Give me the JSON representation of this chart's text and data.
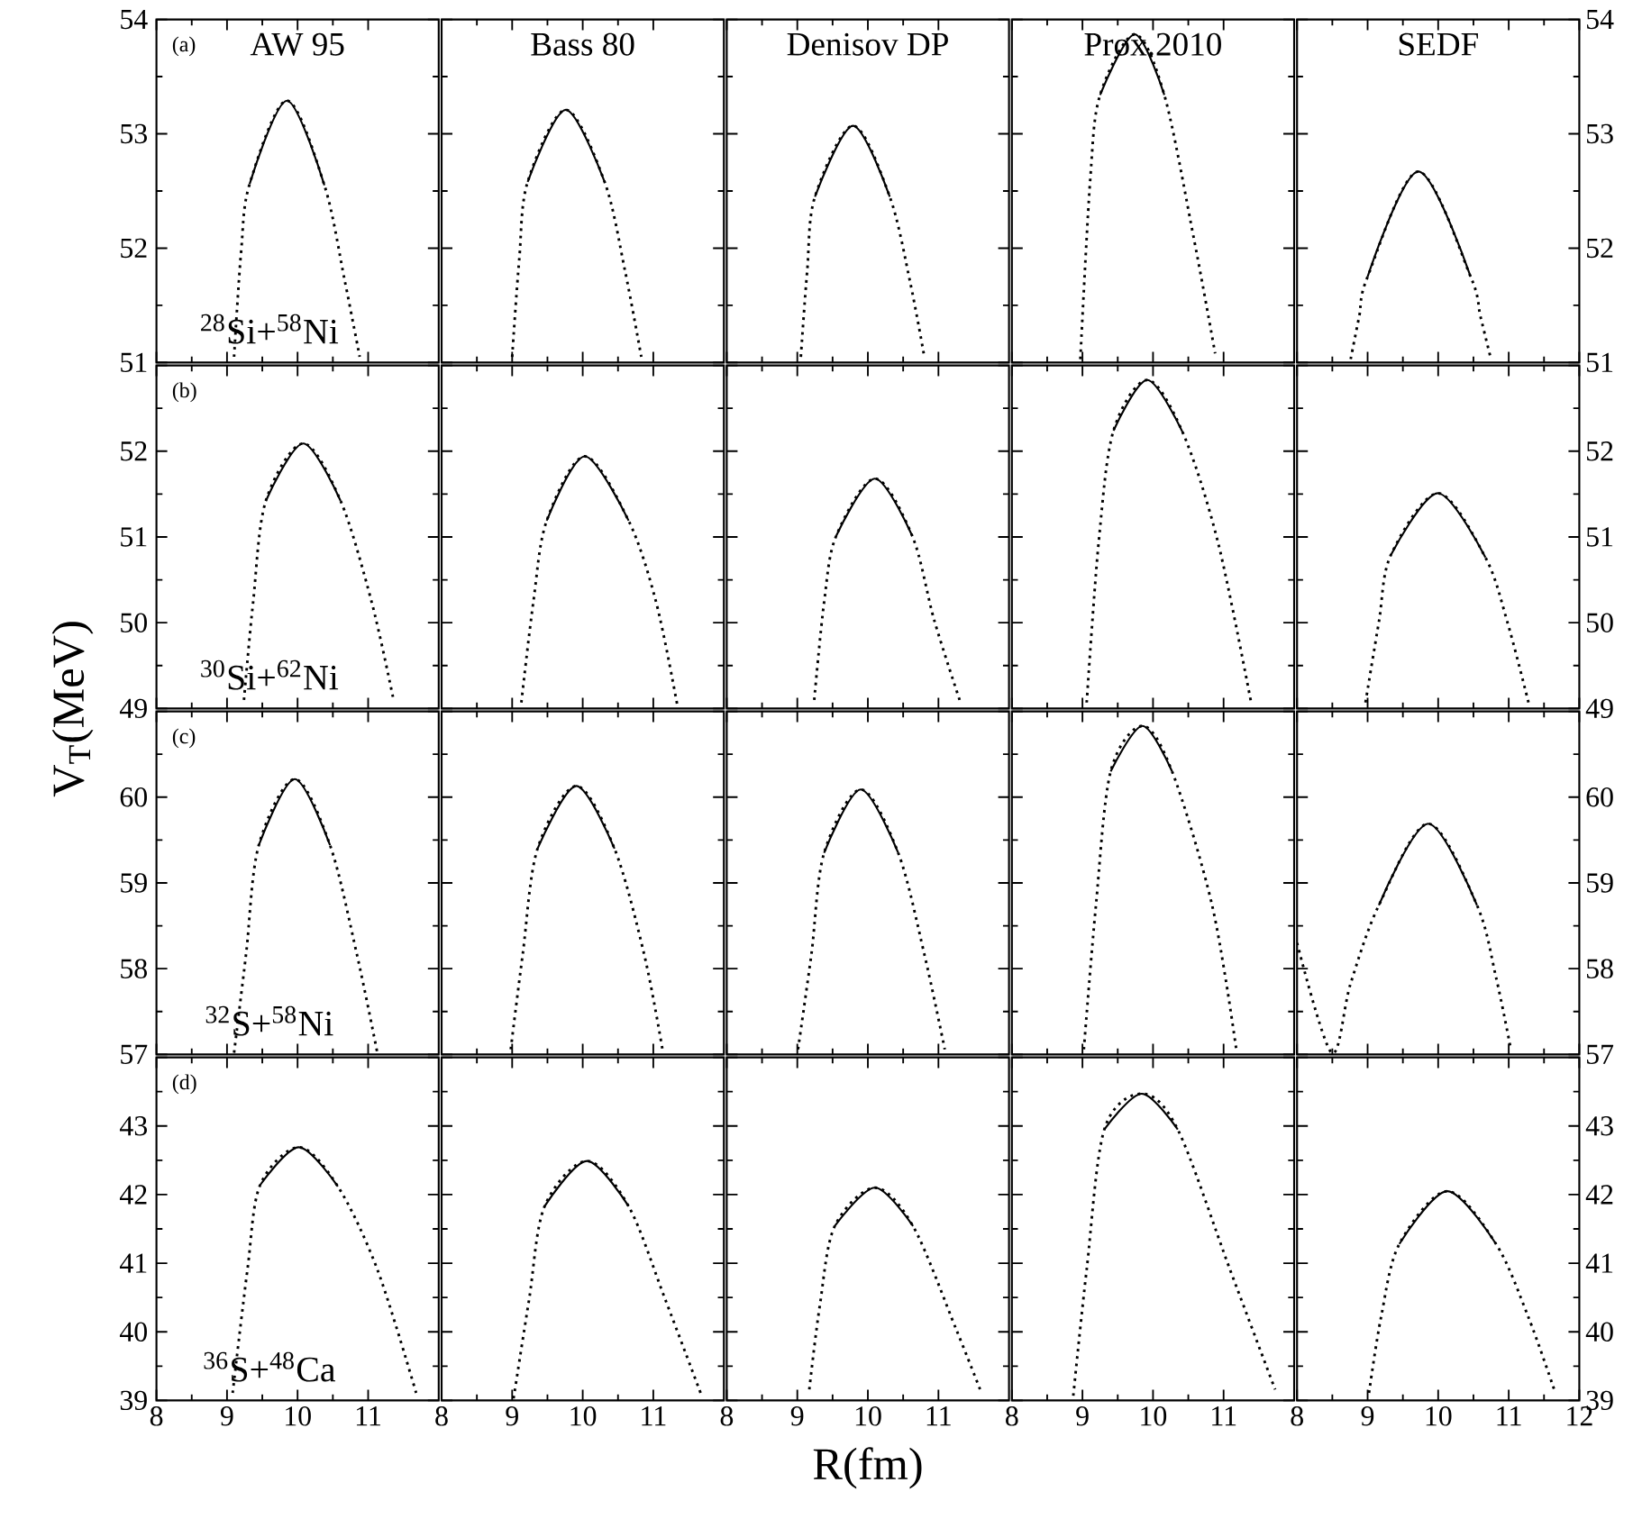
{
  "chart_data": [
    {
      "type": "line",
      "title": "AW 95",
      "annotations": [
        "(a)",
        "$^{28}$Si+$^{58}$Ni"
      ],
      "xlim": [
        8,
        12
      ],
      "ylim": [
        51,
        54
      ],
      "xticks": [
        8,
        9,
        10,
        11
      ],
      "yticks": [
        51,
        52,
        53,
        54
      ],
      "tick_labels": "y",
      "series": [
        {
          "color": "#000000",
          "line_style": "dotted",
          "x": [
            9.1,
            9.2,
            9.32,
            9.85,
            10.38,
            10.67,
            10.88
          ],
          "values": [
            51.05,
            51.97,
            52.56,
            53.29,
            52.55,
            51.71,
            51.05
          ]
        },
        {
          "color": "#000000",
          "line_style": "solid",
          "x": [
            9.32,
            9.85,
            10.38
          ],
          "values": [
            52.56,
            53.29,
            52.55
          ]
        }
      ]
    },
    {
      "type": "line",
      "title": "Bass 80",
      "xlim": [
        8,
        12
      ],
      "ylim": [
        51,
        54
      ],
      "xticks": [
        8,
        9,
        10,
        11
      ],
      "yticks": [
        51,
        52,
        53,
        54
      ],
      "tick_labels": false,
      "series": [
        {
          "color": "#000000",
          "line_style": "dotted",
          "x": [
            9.0,
            9.1,
            9.22,
            9.76,
            10.31,
            10.6,
            10.83
          ],
          "values": [
            51.05,
            51.9,
            52.58,
            53.21,
            52.58,
            51.8,
            51.05
          ]
        },
        {
          "color": "#000000",
          "line_style": "solid",
          "x": [
            9.22,
            9.76,
            10.31
          ],
          "values": [
            52.58,
            53.21,
            52.58
          ]
        }
      ]
    },
    {
      "type": "line",
      "title": "Denisov DP",
      "xlim": [
        8,
        12
      ],
      "ylim": [
        51,
        54
      ],
      "xticks": [
        8,
        9,
        10,
        11
      ],
      "yticks": [
        51,
        52,
        53,
        54
      ],
      "tick_labels": false,
      "series": [
        {
          "color": "#000000",
          "line_style": "dotted",
          "x": [
            9.05,
            9.14,
            9.25,
            9.79,
            10.31,
            10.6,
            10.8
          ],
          "values": [
            51.05,
            51.8,
            52.45,
            53.07,
            52.45,
            51.7,
            51.05
          ]
        },
        {
          "color": "#000000",
          "line_style": "solid",
          "x": [
            9.25,
            9.79,
            10.31
          ],
          "values": [
            52.45,
            53.07,
            52.45
          ]
        }
      ]
    },
    {
      "type": "line",
      "title": "Prox.2010",
      "xlim": [
        8,
        12
      ],
      "ylim": [
        51,
        54
      ],
      "xticks": [
        8,
        9,
        10,
        11
      ],
      "yticks": [
        51,
        52,
        53,
        54
      ],
      "tick_labels": false,
      "series": [
        {
          "color": "#000000",
          "line_style": "dotted",
          "x": [
            8.97,
            9.11,
            9.25,
            9.74,
            10.16,
            10.58,
            10.88
          ],
          "values": [
            51.03,
            52.6,
            53.34,
            53.87,
            53.34,
            52.08,
            51.08
          ]
        },
        {
          "color": "#000000",
          "line_style": "solid",
          "x": [
            9.25,
            9.74,
            10.16
          ],
          "values": [
            53.34,
            53.87,
            53.34
          ]
        }
      ]
    },
    {
      "type": "line",
      "title": "SEDF",
      "xlim": [
        8,
        12
      ],
      "ylim": [
        51,
        54
      ],
      "xticks": [
        8,
        9,
        10,
        11,
        12
      ],
      "yticks": [
        51,
        52,
        53,
        54
      ],
      "tick_labels": "y",
      "series": [
        {
          "color": "#000000",
          "line_style": "dotted",
          "x": [
            8.76,
            8.88,
            9.0,
            9.72,
            10.46,
            10.6,
            10.74
          ],
          "values": [
            51.03,
            51.4,
            51.75,
            52.67,
            51.75,
            51.4,
            51.05
          ]
        },
        {
          "color": "#000000",
          "line_style": "solid",
          "x": [
            9.0,
            9.72,
            10.46
          ],
          "values": [
            51.75,
            52.67,
            51.75
          ]
        }
      ]
    },
    {
      "type": "line",
      "ylabel": "V$_{T}$(MeV)",
      "annotations": [
        "(b)",
        "$^{30}$Si+$^{62}$Ni"
      ],
      "xlim": [
        8,
        12
      ],
      "ylim": [
        49,
        53
      ],
      "xticks": [
        8,
        9,
        10,
        11
      ],
      "yticks": [
        49,
        50,
        51,
        52,
        {
          "value": 53,
          "label": null
        }
      ],
      "tick_labels": "y",
      "series": [
        {
          "color": "#000000",
          "line_style": "dotted",
          "x": [
            9.24,
            9.37,
            9.55,
            10.08,
            10.61,
            11.05,
            11.36
          ],
          "values": [
            49.1,
            50.24,
            51.42,
            52.09,
            51.42,
            50.24,
            49.1
          ]
        },
        {
          "color": "#000000",
          "line_style": "solid",
          "x": [
            9.55,
            10.08,
            10.61
          ],
          "values": [
            51.42,
            52.09,
            51.42
          ]
        }
      ]
    },
    {
      "type": "line",
      "xlim": [
        8,
        12
      ],
      "ylim": [
        49,
        53
      ],
      "xticks": [
        8,
        9,
        10,
        11
      ],
      "yticks": [
        49,
        50,
        51,
        52,
        {
          "value": 53,
          "label": null
        }
      ],
      "tick_labels": false,
      "series": [
        {
          "color": "#000000",
          "line_style": "dotted",
          "x": [
            9.13,
            9.3,
            9.49,
            10.03,
            10.65,
            11.04,
            11.34
          ],
          "values": [
            49.07,
            50.24,
            51.19,
            51.94,
            51.19,
            50.24,
            49.04
          ]
        },
        {
          "color": "#000000",
          "line_style": "solid",
          "x": [
            9.49,
            10.03,
            10.65
          ],
          "values": [
            51.19,
            51.94,
            51.19
          ]
        }
      ]
    },
    {
      "type": "line",
      "xlim": [
        8,
        12
      ],
      "ylim": [
        49,
        53
      ],
      "xticks": [
        8,
        9,
        10,
        11
      ],
      "yticks": [
        49,
        50,
        51,
        52,
        {
          "value": 53,
          "label": null
        }
      ],
      "tick_labels": false,
      "series": [
        {
          "color": "#000000",
          "line_style": "dotted",
          "x": [
            9.24,
            9.38,
            9.55,
            10.1,
            10.63,
            10.94,
            11.3
          ],
          "values": [
            49.1,
            50.24,
            51.01,
            51.68,
            51.01,
            50.03,
            49.1
          ]
        },
        {
          "color": "#000000",
          "line_style": "solid",
          "x": [
            9.55,
            10.1,
            10.63
          ],
          "values": [
            51.01,
            51.68,
            51.01
          ]
        }
      ]
    },
    {
      "type": "line",
      "xlim": [
        8,
        12
      ],
      "ylim": [
        49,
        53
      ],
      "xticks": [
        8,
        9,
        10,
        11
      ],
      "yticks": [
        49,
        50,
        51,
        52,
        {
          "value": 53,
          "label": null
        }
      ],
      "tick_labels": false,
      "series": [
        {
          "color": "#000000",
          "line_style": "dotted",
          "x": [
            9.06,
            9.23,
            9.44,
            9.92,
            10.42,
            10.92,
            11.39
          ],
          "values": [
            49.07,
            50.94,
            52.24,
            52.83,
            52.22,
            50.94,
            49.07
          ]
        },
        {
          "color": "#000000",
          "line_style": "solid",
          "x": [
            9.44,
            9.92,
            10.42
          ],
          "values": [
            52.24,
            52.83,
            52.22
          ]
        }
      ]
    },
    {
      "type": "line",
      "xlim": [
        8,
        12
      ],
      "ylim": [
        49,
        53
      ],
      "xticks": [
        8,
        9,
        10,
        11,
        12
      ],
      "yticks": [
        49,
        50,
        51,
        52,
        {
          "value": 53,
          "label": null
        }
      ],
      "tick_labels": "y",
      "series": [
        {
          "color": "#000000",
          "line_style": "dotted",
          "x": [
            8.97,
            9.16,
            9.33,
            10.0,
            10.67,
            10.98,
            11.28
          ],
          "values": [
            49.07,
            50.01,
            50.79,
            51.51,
            50.76,
            50.01,
            49.07
          ]
        },
        {
          "color": "#000000",
          "line_style": "solid",
          "x": [
            9.33,
            10.0,
            10.67
          ],
          "values": [
            50.79,
            51.51,
            50.76
          ]
        }
      ]
    },
    {
      "type": "line",
      "annotations": [
        "(c)",
        "$^{32}$S+$^{58}$Ni"
      ],
      "xlim": [
        8,
        12
      ],
      "ylim": [
        57,
        61
      ],
      "xticks": [
        8,
        9,
        10,
        11
      ],
      "yticks": [
        57,
        58,
        59,
        60,
        {
          "value": 61,
          "label": null
        }
      ],
      "tick_labels": "y",
      "series": [
        {
          "color": "#000000",
          "line_style": "dotted",
          "x": [
            9.1,
            9.27,
            9.45,
            9.96,
            10.46,
            10.84,
            11.13
          ],
          "values": [
            57.02,
            58.17,
            59.44,
            60.21,
            59.44,
            58.17,
            57.02
          ]
        },
        {
          "color": "#000000",
          "line_style": "solid",
          "x": [
            9.45,
            9.96,
            10.46
          ],
          "values": [
            59.44,
            60.21,
            59.44
          ]
        }
      ]
    },
    {
      "type": "line",
      "xlim": [
        8,
        12
      ],
      "ylim": [
        57,
        61
      ],
      "xticks": [
        8,
        9,
        10,
        11
      ],
      "yticks": [
        57,
        58,
        59,
        60,
        {
          "value": 61,
          "label": null
        }
      ],
      "tick_labels": false,
      "series": [
        {
          "color": "#000000",
          "line_style": "dotted",
          "x": [
            8.98,
            9.15,
            9.36,
            9.91,
            10.45,
            10.87,
            11.13
          ],
          "values": [
            57.06,
            58.17,
            59.4,
            60.13,
            59.4,
            58.17,
            57.06
          ]
        },
        {
          "color": "#000000",
          "line_style": "solid",
          "x": [
            9.36,
            9.91,
            10.45
          ],
          "values": [
            59.4,
            60.13,
            59.4
          ]
        }
      ]
    },
    {
      "type": "line",
      "xlim": [
        8,
        12
      ],
      "ylim": [
        57,
        61
      ],
      "xticks": [
        8,
        9,
        10,
        11
      ],
      "yticks": [
        57,
        58,
        59,
        60,
        {
          "value": 61,
          "label": null
        }
      ],
      "tick_labels": false,
      "series": [
        {
          "color": "#000000",
          "line_style": "dotted",
          "x": [
            9.01,
            9.2,
            9.38,
            9.9,
            10.43,
            10.8,
            11.09
          ],
          "values": [
            57.06,
            58.17,
            59.35,
            60.09,
            59.35,
            58.17,
            57.06
          ]
        },
        {
          "color": "#000000",
          "line_style": "solid",
          "x": [
            9.38,
            9.9,
            10.43
          ],
          "values": [
            59.35,
            60.09,
            59.35
          ]
        }
      ]
    },
    {
      "type": "line",
      "xlim": [
        8,
        12
      ],
      "ylim": [
        57,
        61
      ],
      "xticks": [
        8,
        9,
        10,
        11
      ],
      "yticks": [
        57,
        58,
        59,
        60,
        {
          "value": 61,
          "label": null
        }
      ],
      "tick_labels": false,
      "series": [
        {
          "color": "#000000",
          "line_style": "dotted",
          "x": [
            9.02,
            9.19,
            9.4,
            9.85,
            10.27,
            10.84,
            11.18
          ],
          "values": [
            57.06,
            58.73,
            60.3,
            60.83,
            60.3,
            58.73,
            57.06
          ]
        },
        {
          "color": "#000000",
          "line_style": "solid",
          "x": [
            9.4,
            9.85,
            10.27
          ],
          "values": [
            60.3,
            60.83,
            60.3
          ]
        }
      ]
    },
    {
      "type": "line",
      "xlim": [
        8,
        12
      ],
      "ylim": [
        57,
        61
      ],
      "xticks": [
        8,
        9,
        10,
        11,
        12
      ],
      "yticks": [
        57,
        58,
        59,
        60,
        {
          "value": 61,
          "label": null
        }
      ],
      "tick_labels": "y",
      "series": [
        {
          "color": "#000000",
          "line_style": "dotted",
          "x": [
            8.0,
            8.49,
            8.76,
            9.16,
            9.86,
            10.55,
            10.82,
            11.03
          ],
          "values": [
            58.3,
            57.02,
            57.83,
            58.74,
            59.69,
            58.74,
            57.9,
            57.06
          ]
        },
        {
          "color": "#000000",
          "line_style": "solid",
          "x": [
            9.16,
            9.86,
            10.55
          ],
          "values": [
            58.74,
            59.69,
            58.74
          ]
        }
      ]
    },
    {
      "type": "line",
      "annotations": [
        "(d)",
        "$^{36}$S+$^{48}$Ca"
      ],
      "xlim": [
        8,
        12
      ],
      "ylim": [
        39,
        44
      ],
      "xticks": [
        8,
        9,
        10,
        11
      ],
      "yticks": [
        39,
        40,
        41,
        42,
        43,
        {
          "value": 44,
          "label": null
        }
      ],
      "series": [
        {
          "color": "#000000",
          "line_style": "dotted",
          "x": [
            9.08,
            9.29,
            9.47,
            10.02,
            10.57,
            11.13,
            11.68
          ],
          "values": [
            39.11,
            40.91,
            42.14,
            42.69,
            42.12,
            40.91,
            39.11
          ]
        },
        {
          "color": "#000000",
          "line_style": "solid",
          "x": [
            9.47,
            10.02,
            10.57
          ],
          "values": [
            42.14,
            42.69,
            42.12
          ]
        }
      ]
    },
    {
      "type": "line",
      "xlim": [
        8,
        12
      ],
      "ylim": [
        39,
        44
      ],
      "xticks": [
        8,
        9,
        10,
        11
      ],
      "yticks": [
        39,
        40,
        41,
        42,
        43,
        {
          "value": 44,
          "label": null
        }
      ],
      "tick_labels": "x",
      "series": [
        {
          "color": "#000000",
          "line_style": "dotted",
          "x": [
            9.02,
            9.24,
            9.46,
            10.06,
            10.65,
            11.17,
            11.67
          ],
          "values": [
            39.03,
            40.47,
            41.83,
            42.49,
            41.83,
            40.47,
            39.11
          ]
        },
        {
          "color": "#000000",
          "line_style": "solid",
          "x": [
            9.46,
            10.06,
            10.65
          ],
          "values": [
            41.83,
            42.49,
            41.83
          ]
        }
      ]
    },
    {
      "type": "line",
      "xlabel": "R(fm)",
      "xlim": [
        8,
        12
      ],
      "ylim": [
        39,
        44
      ],
      "xticks": [
        8,
        9,
        10,
        11
      ],
      "yticks": [
        39,
        40,
        41,
        42,
        43,
        {
          "value": 44,
          "label": null
        }
      ],
      "tick_labels": "x",
      "series": [
        {
          "color": "#000000",
          "line_style": "dotted",
          "x": [
            9.17,
            9.32,
            9.53,
            10.1,
            10.64,
            11.25,
            11.59
          ],
          "values": [
            39.16,
            40.39,
            41.54,
            42.1,
            41.54,
            40.04,
            39.16
          ]
        },
        {
          "color": "#000000",
          "line_style": "solid",
          "x": [
            9.53,
            10.1,
            10.64
          ],
          "values": [
            41.54,
            42.1,
            41.54
          ]
        }
      ]
    },
    {
      "type": "line",
      "xlim": [
        8,
        12
      ],
      "ylim": [
        39,
        44
      ],
      "xticks": [
        8,
        9,
        10,
        11
      ],
      "yticks": [
        39,
        40,
        41,
        42,
        43,
        {
          "value": 44,
          "label": null
        }
      ],
      "tick_labels": "x",
      "series": [
        {
          "color": "#000000",
          "line_style": "dotted",
          "x": [
            8.87,
            9.06,
            9.31,
            9.84,
            10.35,
            11.09,
            11.73
          ],
          "values": [
            39.07,
            40.91,
            42.95,
            43.47,
            42.95,
            40.91,
            39.16
          ]
        },
        {
          "color": "#000000",
          "line_style": "solid",
          "x": [
            9.31,
            9.84,
            10.35
          ],
          "values": [
            42.95,
            43.47,
            42.95
          ]
        }
      ]
    },
    {
      "type": "line",
      "xlim": [
        8,
        12
      ],
      "ylim": [
        39,
        44
      ],
      "xticks": [
        8,
        9,
        10,
        11,
        12
      ],
      "yticks": [
        39,
        40,
        41,
        42,
        43,
        {
          "value": 44,
          "label": null
        }
      ],
      "series": [
        {
          "color": "#000000",
          "line_style": "dotted",
          "x": [
            9.02,
            9.19,
            9.45,
            10.13,
            10.82,
            11.28,
            11.66
          ],
          "values": [
            39.11,
            40.21,
            41.28,
            42.05,
            41.28,
            40.21,
            39.11
          ]
        },
        {
          "color": "#000000",
          "line_style": "solid",
          "x": [
            9.45,
            10.13,
            10.82
          ],
          "values": [
            41.28,
            42.05,
            41.28
          ]
        }
      ]
    }
  ]
}
